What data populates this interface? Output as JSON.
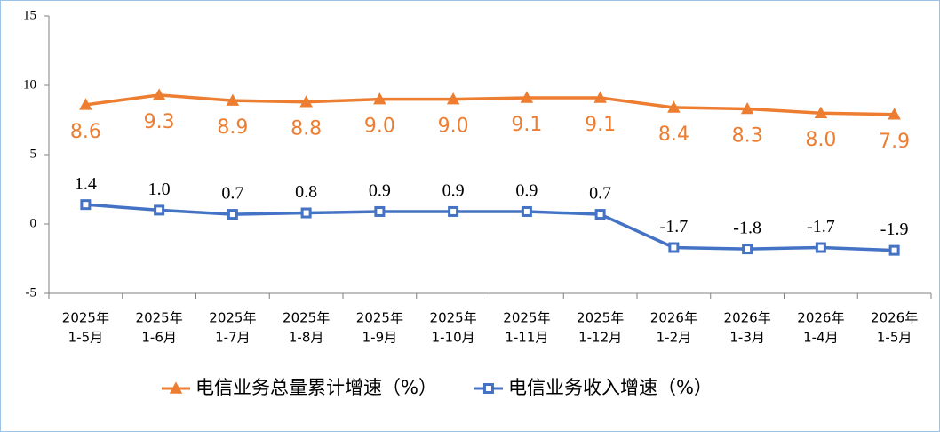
{
  "chart_data": {
    "type": "line",
    "categories": [
      [
        "2025年",
        "1-5月"
      ],
      [
        "2025年",
        "1-6月"
      ],
      [
        "2025年",
        "1-7月"
      ],
      [
        "2025年",
        "1-8月"
      ],
      [
        "2025年",
        "1-9月"
      ],
      [
        "2025年",
        "1-10月"
      ],
      [
        "2025年",
        "1-11月"
      ],
      [
        "2025年",
        "1-12月"
      ],
      [
        "2026年",
        "1-2月"
      ],
      [
        "2026年",
        "1-3月"
      ],
      [
        "2026年",
        "1-4月"
      ],
      [
        "2026年",
        "1-5月"
      ]
    ],
    "series": [
      {
        "name": "电信业务总量累计增速（%）",
        "color": "#ed7d31",
        "marker": "triangle",
        "values": [
          8.6,
          9.3,
          8.9,
          8.8,
          9.0,
          9.0,
          9.1,
          9.1,
          8.4,
          8.3,
          8.0,
          7.9
        ],
        "value_labels": [
          "8.6",
          "9.3",
          "8.9",
          "8.8",
          "9.0",
          "9.0",
          "9.1",
          "9.1",
          "8.4",
          "8.3",
          "8.0",
          "7.9"
        ]
      },
      {
        "name": "电信业务收入增速（%）",
        "color": "#4472c4",
        "marker": "square",
        "values": [
          1.4,
          1.0,
          0.7,
          0.8,
          0.9,
          0.9,
          0.9,
          0.7,
          -1.7,
          -1.8,
          -1.7,
          -1.9
        ],
        "value_labels": [
          "1.4",
          "1.0",
          "0.7",
          "0.8",
          "0.9",
          "0.9",
          "0.9",
          "0.7",
          "-1.7",
          "-1.8",
          "-1.7",
          "-1.9"
        ]
      }
    ],
    "ylim": [
      -5,
      15
    ],
    "yticks": [
      -5,
      0,
      5,
      10,
      15
    ],
    "grid": false,
    "legend": "bottom"
  }
}
